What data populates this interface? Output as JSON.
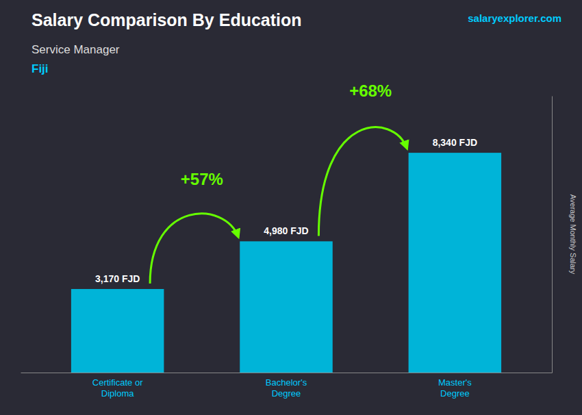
{
  "chart_data": {
    "type": "bar",
    "title": "Salary Comparison By Education",
    "subtitle": "Service Manager",
    "y_label": "Average Monthly Salary",
    "categories": [
      "Certificate or\nDiploma",
      "Bachelor's\nDegree",
      "Master's\nDegree"
    ],
    "values": [
      3170,
      4980,
      8340
    ],
    "value_labels": [
      "3,170 FJD",
      "4,980 FJD",
      "8,340 FJD"
    ],
    "color": "#00b4d8",
    "ylim": [
      0,
      10500
    ],
    "yticks": [],
    "grid": false,
    "data_labels": true,
    "tick_labels": "x",
    "annotations": [
      {
        "text": "Fiji"
      },
      {
        "text": "salaryexplorer.com"
      },
      {
        "text": "+57%",
        "between": [
          0,
          1
        ],
        "color": "#66ff00"
      },
      {
        "text": "+68%",
        "between": [
          1,
          2
        ],
        "color": "#66ff00"
      }
    ]
  }
}
